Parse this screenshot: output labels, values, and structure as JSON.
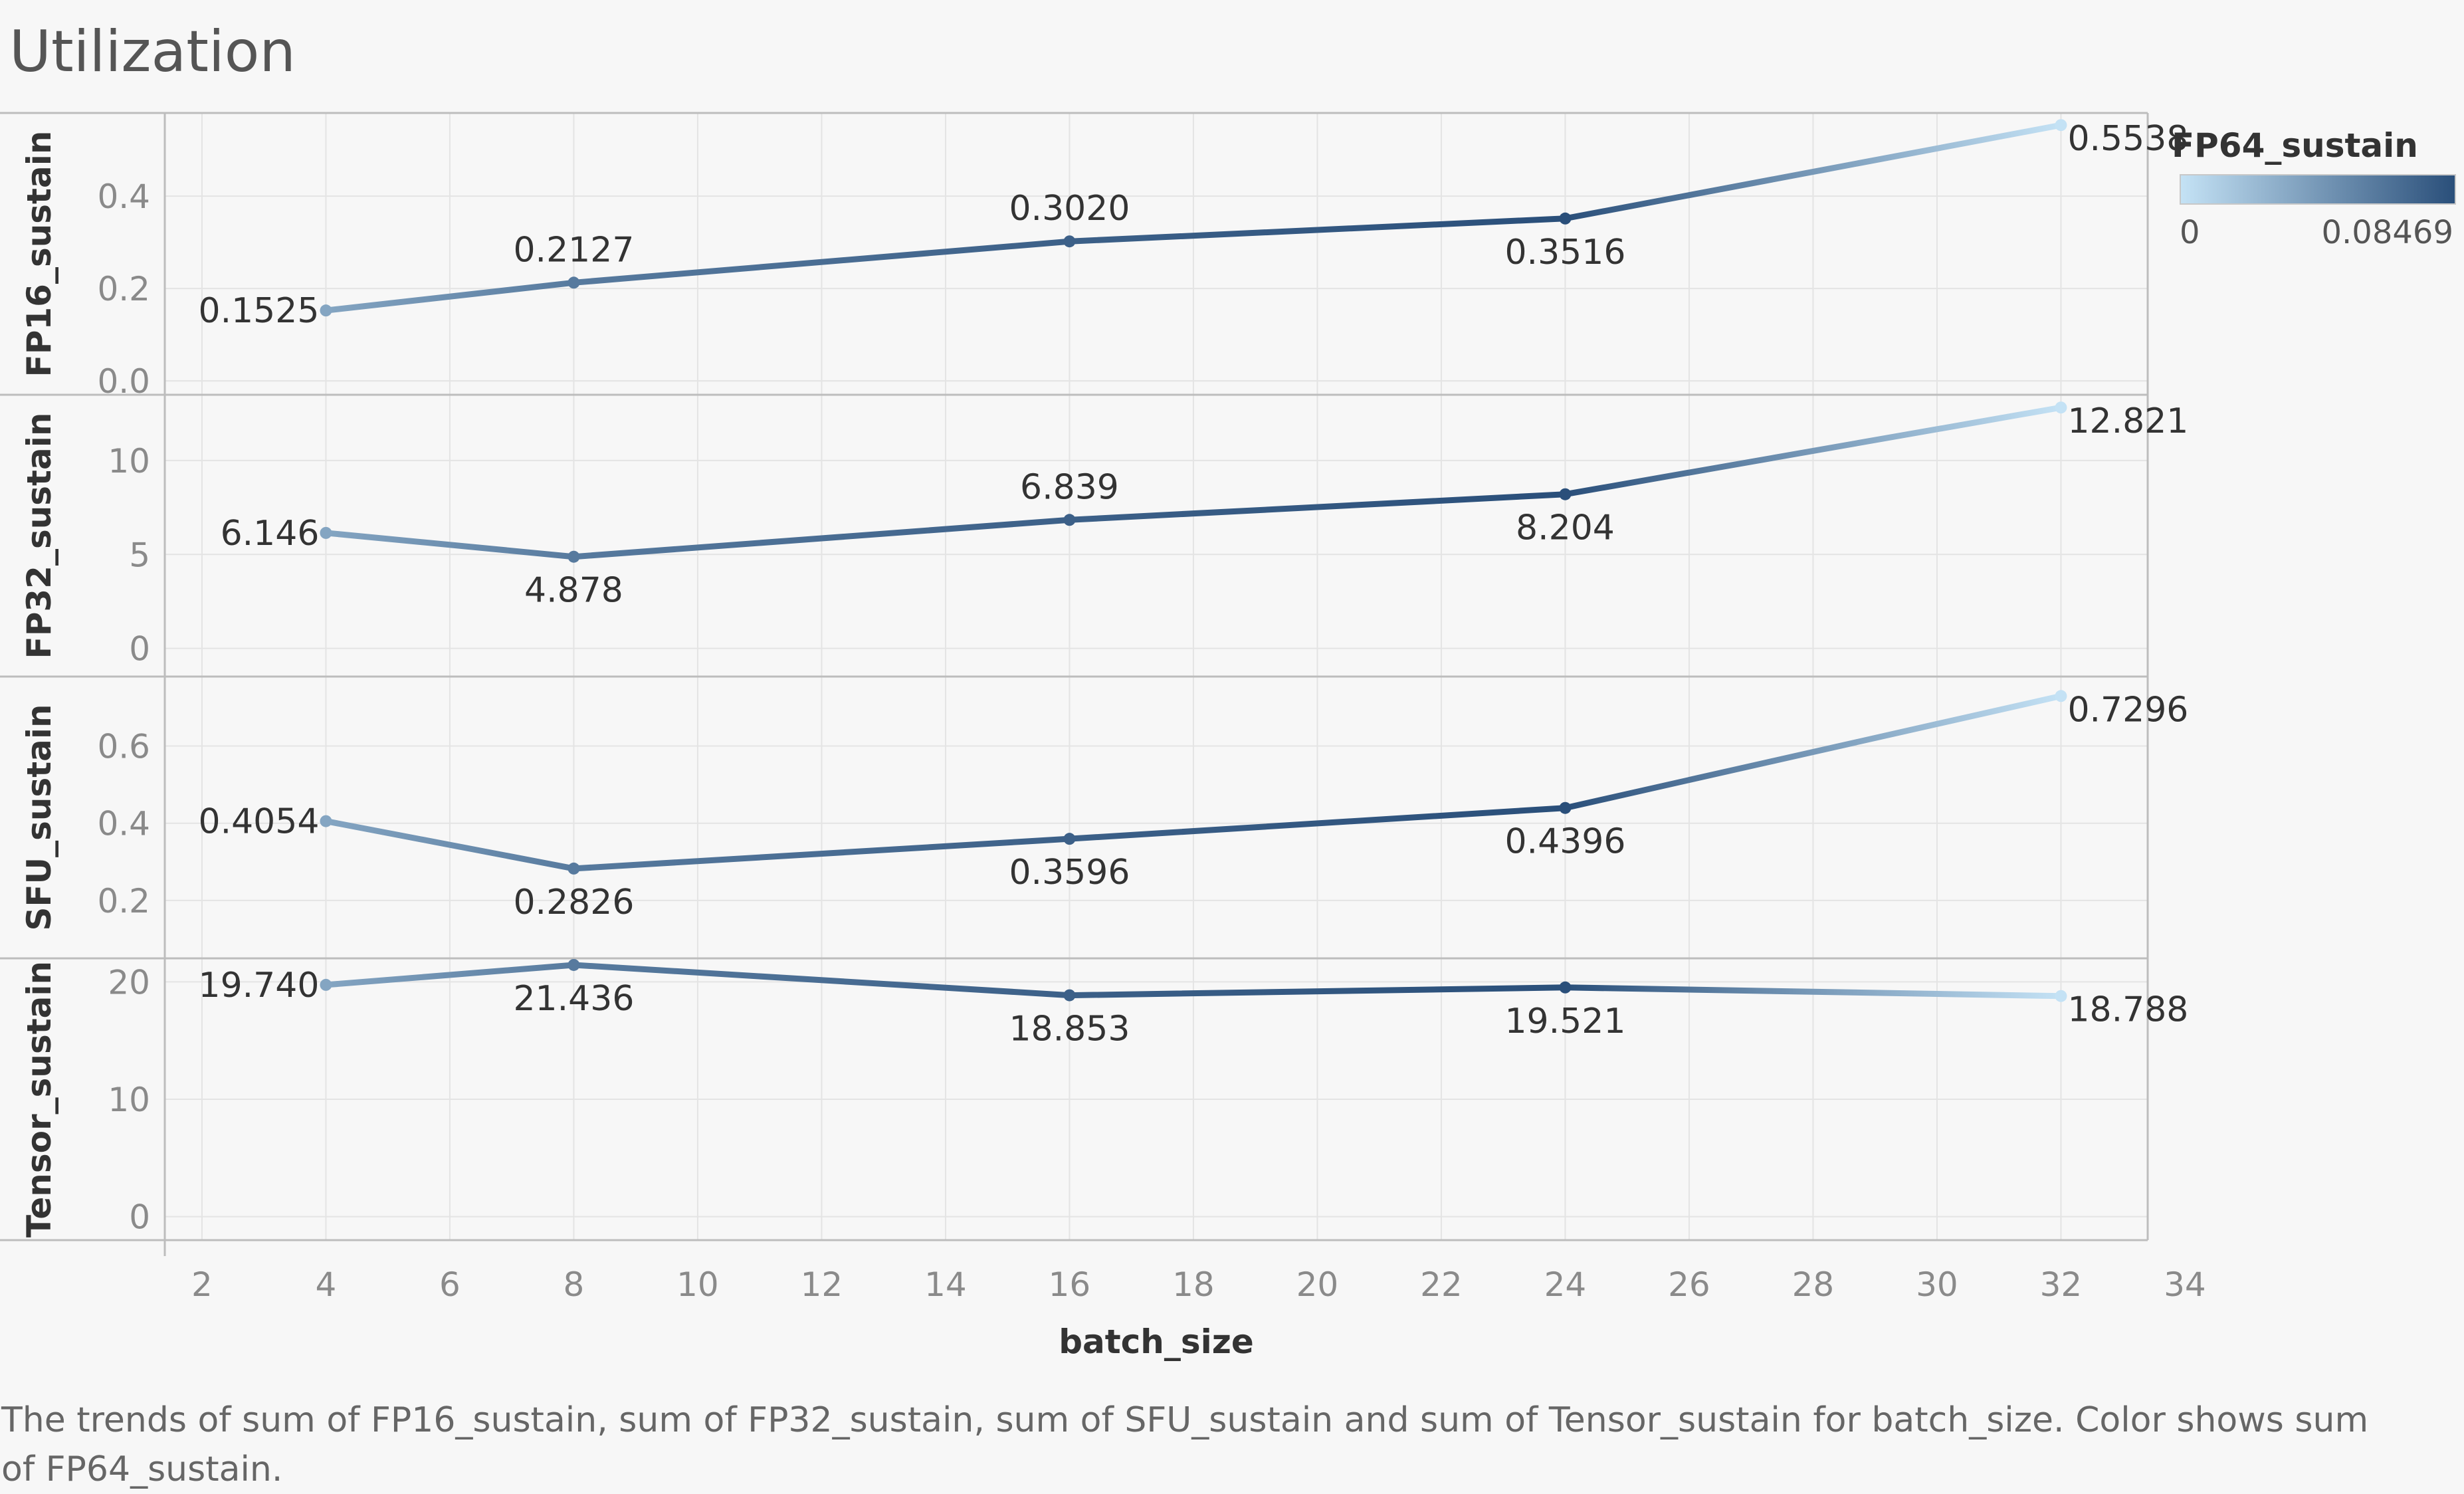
{
  "title": "Utilization",
  "caption": "The trends of sum of FP16_sustain, sum of FP32_sustain, sum of SFU_sustain and sum of Tensor_sustain for batch_size.  Color shows sum of FP64_sustain.",
  "legend": {
    "title": "FP64_sustain",
    "min_label": "0",
    "max_label": "0.08469",
    "color_low": "#c4e2f5",
    "color_high": "#2a4f7a"
  },
  "colors": {
    "axis": "#bdbdbd",
    "grid": "#e4e4e4",
    "tick_text": "#8a8a8a",
    "label_text": "#333333"
  },
  "chart_data": {
    "type": "line",
    "x": [
      4,
      8,
      16,
      24,
      32
    ],
    "xlabel": "batch_size",
    "xlim": [
      1.4,
      33.4
    ],
    "xticks": [
      2,
      4,
      6,
      8,
      10,
      12,
      14,
      16,
      18,
      20,
      22,
      24,
      26,
      28,
      30,
      32,
      34
    ],
    "color_values": [
      0.035,
      0.06,
      0.075,
      0.08469,
      0.0
    ],
    "panels": [
      {
        "name": "FP16_sustain",
        "values": [
          0.1525,
          0.2127,
          0.302,
          0.3516,
          0.5538
        ],
        "labels": [
          "0.1525",
          "0.2127",
          "0.3020",
          "0.3516",
          "0.5538"
        ],
        "label_pos": [
          "left",
          "above",
          "above",
          "below",
          "right"
        ],
        "ylim": [
          -0.03,
          0.58
        ],
        "yticks": [
          0.0,
          0.2,
          0.4
        ],
        "ytick_labels": [
          "0.0",
          "0.2",
          "0.4"
        ]
      },
      {
        "name": "FP32_sustain",
        "values": [
          6.146,
          4.878,
          6.839,
          8.204,
          12.821
        ],
        "labels": [
          "6.146",
          "4.878",
          "6.839",
          "8.204",
          "12.821"
        ],
        "label_pos": [
          "left",
          "below",
          "above",
          "below",
          "right"
        ],
        "ylim": [
          -1.5,
          13.5
        ],
        "yticks": [
          0,
          5,
          10
        ],
        "ytick_labels": [
          "0",
          "5",
          "10"
        ]
      },
      {
        "name": "SFU_sustain",
        "values": [
          0.4054,
          0.2826,
          0.3596,
          0.4396,
          0.7296
        ],
        "labels": [
          "0.4054",
          "0.2826",
          "0.3596",
          "0.4396",
          "0.7296"
        ],
        "label_pos": [
          "left",
          "below",
          "below",
          "below",
          "right"
        ],
        "ylim": [
          0.05,
          0.78
        ],
        "yticks": [
          0.2,
          0.4,
          0.6
        ],
        "ytick_labels": [
          "0.2",
          "0.4",
          "0.6"
        ]
      },
      {
        "name": "Tensor_sustain",
        "values": [
          19.74,
          21.436,
          18.853,
          19.521,
          18.788
        ],
        "labels": [
          "19.740",
          "21.436",
          "18.853",
          "19.521",
          "18.788"
        ],
        "label_pos": [
          "left",
          "below",
          "below",
          "below",
          "right"
        ],
        "ylim": [
          -2.0,
          22.0
        ],
        "yticks": [
          0,
          10,
          20
        ],
        "ytick_labels": [
          "0",
          "10",
          "20"
        ]
      }
    ]
  }
}
